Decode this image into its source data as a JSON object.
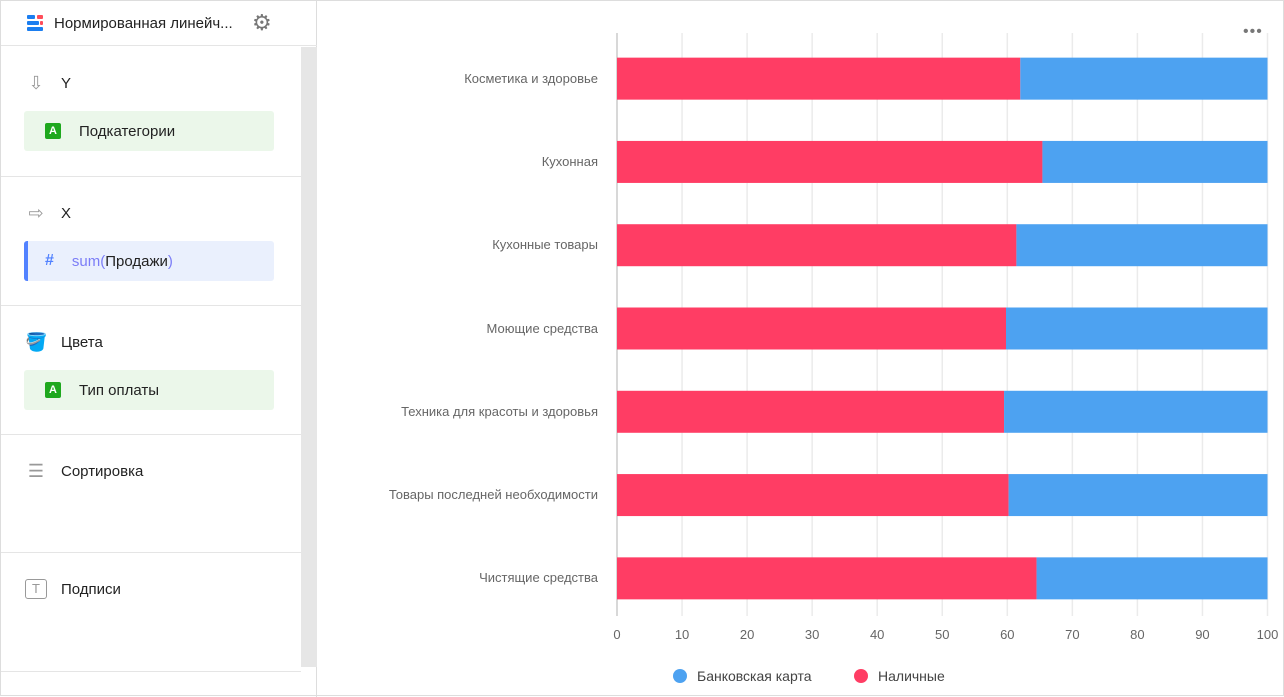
{
  "header": {
    "title": "Нормированная линейч...",
    "icon": "chart-bar-icon",
    "settings_icon": "gear-icon"
  },
  "sections": [
    {
      "label": "Y",
      "icon": "arrow-down-icon",
      "field": {
        "type": "A",
        "label": "Подкатегории"
      }
    },
    {
      "label": "X",
      "icon": "arrow-right-icon",
      "field": {
        "type": "#",
        "fn": "sum(",
        "label": "Продажи",
        ",close": ")"
      }
    },
    {
      "label": "Цвета",
      "icon": "paint-bucket-icon",
      "field": {
        "type": "A",
        "label": "Тип оплаты"
      }
    },
    {
      "label": "Сортировка",
      "icon": "sort-icon"
    },
    {
      "label": "Подписи",
      "icon": "text-icon"
    }
  ],
  "x_close": ")",
  "chart_data": {
    "type": "bar",
    "orientation": "horizontal",
    "stacked": "percent",
    "categories": [
      "Косметика и здоровье",
      "Кухонная",
      "Кухонные товары",
      "Моющие средства",
      "Техника для красоты и здоровья",
      "Товары последней необходимости",
      "Чистящие средства"
    ],
    "series": [
      {
        "name": "Наличные",
        "color": "#ff3d64",
        "values": [
          62.0,
          65.4,
          61.4,
          59.8,
          59.5,
          60.2,
          64.5
        ]
      },
      {
        "name": "Банковская карта",
        "color": "#4da2f1",
        "values": [
          38.0,
          34.6,
          38.6,
          40.2,
          40.5,
          39.8,
          35.5
        ]
      }
    ],
    "xlim": [
      0,
      100
    ],
    "xticks": [
      "0",
      "10",
      "20",
      "30",
      "40",
      "50",
      "60",
      "70",
      "80",
      "90",
      "100"
    ],
    "grid": true,
    "legend": {
      "position": "bottom",
      "items": [
        "Банковская карта",
        "Наличные"
      ]
    }
  }
}
